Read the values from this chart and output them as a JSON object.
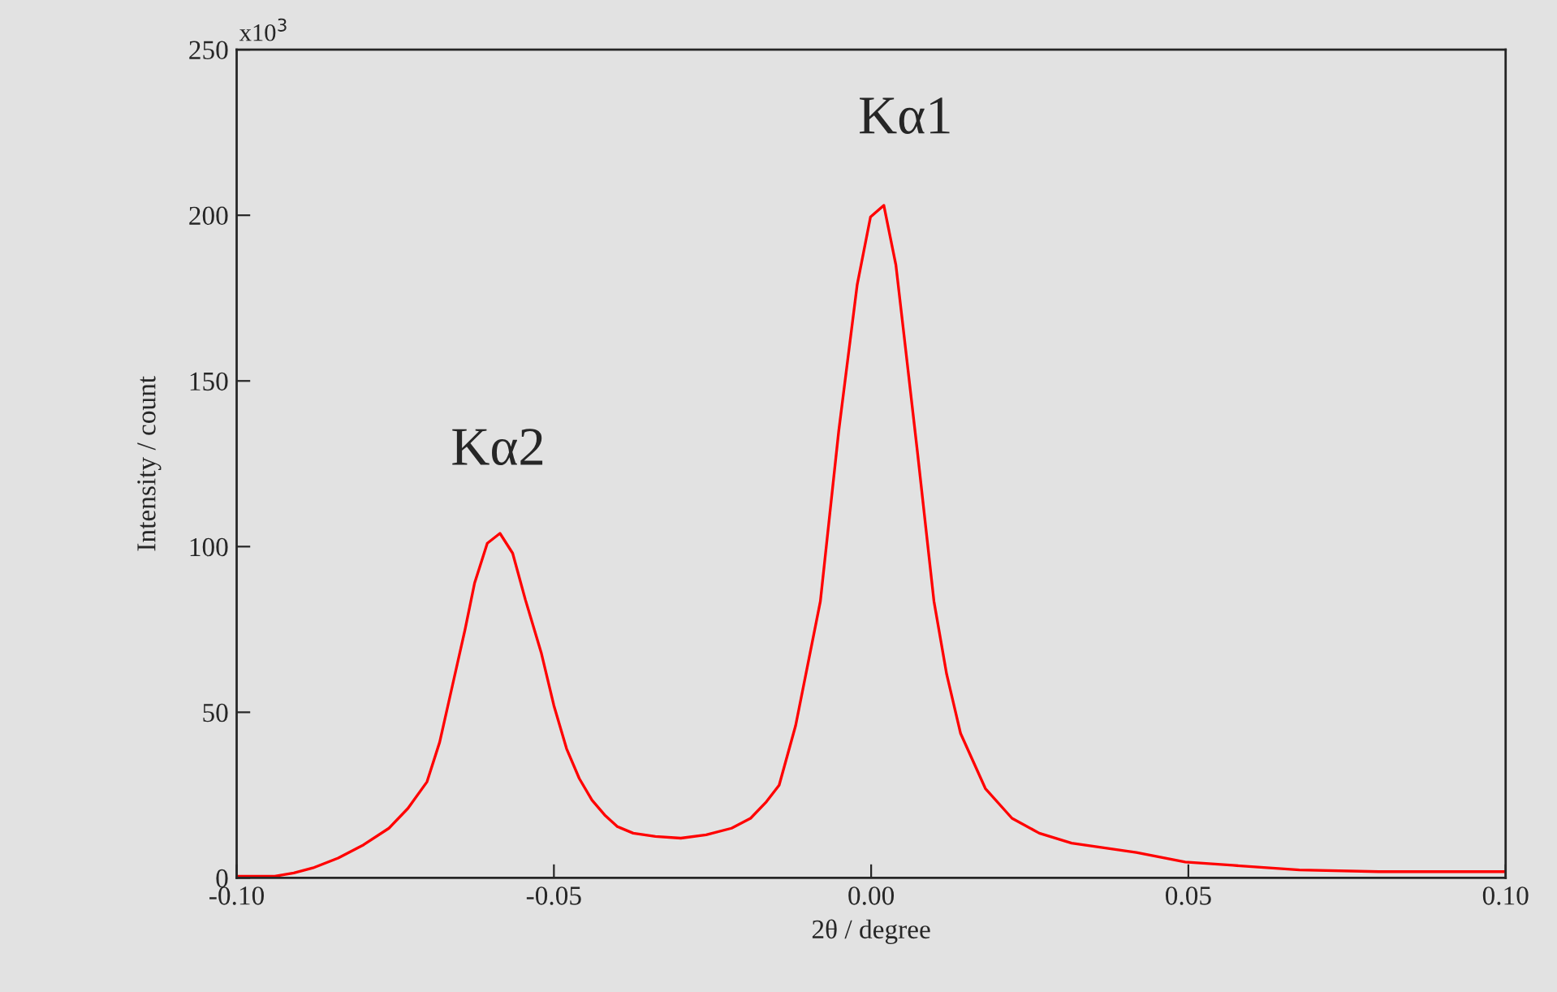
{
  "chart_data": {
    "type": "line",
    "xlabel": "2θ / degree",
    "ylabel": "Intensity / count",
    "series": [
      {
        "color": "#ff0000",
        "x": [
          -0.1,
          -0.094,
          -0.091,
          -0.088,
          -0.084,
          -0.08,
          -0.076,
          -0.073,
          -0.07,
          -0.068,
          -0.066,
          -0.064,
          -0.0625,
          -0.0605,
          -0.0585,
          -0.0565,
          -0.0545,
          -0.052,
          -0.05,
          -0.048,
          -0.046,
          -0.044,
          -0.042,
          -0.04,
          -0.0375,
          -0.034,
          -0.03,
          -0.026,
          -0.022,
          -0.019,
          -0.0165,
          -0.0145,
          -0.0119,
          -0.008,
          -0.0051,
          -0.0022,
          -0.0001,
          0.002,
          0.0039,
          0.0052,
          0.0073,
          0.0099,
          0.0119,
          0.0141,
          0.018,
          0.0222,
          0.0265,
          0.0316,
          0.0418,
          0.0495,
          0.057,
          0.0675,
          0.08,
          0.1
        ],
        "values": [
          0.5,
          0.5,
          1.5,
          3,
          6,
          10,
          15,
          21,
          29,
          41,
          58,
          75,
          89,
          101,
          104,
          98,
          84,
          68,
          52,
          39,
          30,
          23.5,
          19,
          15.5,
          13.5,
          12.5,
          12,
          13,
          15,
          18,
          23,
          28,
          46,
          83.5,
          135,
          179,
          199.5,
          203,
          185,
          163.5,
          128.5,
          83.5,
          61.5,
          43.6,
          27,
          18,
          13.5,
          10.5,
          7.7,
          4.8,
          3.8,
          2.4,
          1.9,
          1.9
        ]
      }
    ],
    "xlim": [
      -0.1,
      0.1
    ],
    "xticks": [
      {
        "value": -0.1,
        "label": "-0.10"
      },
      {
        "value": -0.05,
        "label": "-0.05"
      },
      {
        "value": 0,
        "label": "0.00"
      },
      {
        "value": 0.05,
        "label": "0.05"
      },
      {
        "value": 0.1,
        "label": "0.10"
      }
    ],
    "ylim": [
      0,
      250
    ],
    "yticks": [
      0,
      50,
      100,
      150,
      200,
      250
    ],
    "annotations": [
      "Kα1",
      "Kα2",
      "x10$^{3}$"
    ],
    "grid": false,
    "legend": false,
    "marker": "none",
    "line_style": "solid"
  }
}
